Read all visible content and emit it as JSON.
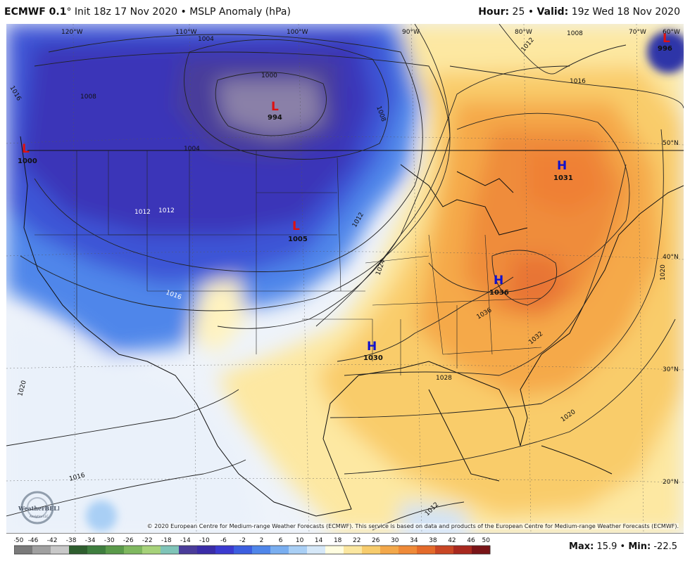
{
  "header": {
    "model": "ECMWF 0.1",
    "degree": "°",
    "init": "Init 18z 17 Nov 2020",
    "bullet": "•",
    "product": "MSLP Anomaly (hPa)",
    "hour_label": "Hour:",
    "hour_value": "25",
    "valid_label": "Valid:",
    "valid_value": "19z Wed 18 Nov 2020"
  },
  "map": {
    "lon_labels": [
      "120°W",
      "110°W",
      "100°W",
      "90°W",
      "80°W",
      "70°W",
      "60°W"
    ],
    "lat_labels": [
      "50°N",
      "40°N",
      "30°N",
      "20°N"
    ],
    "isobars": [
      "1004",
      "1000",
      "1008",
      "1012",
      "1016",
      "1024",
      "1028",
      "1032",
      "1036",
      "1020",
      "1016",
      "1012",
      "1008",
      "1004",
      "1000",
      "1016",
      "1012",
      "1020",
      "1020",
      "1012"
    ],
    "centers": [
      {
        "letter": "L",
        "value": "994"
      },
      {
        "letter": "L",
        "value": "1000"
      },
      {
        "letter": "L",
        "value": "1005"
      },
      {
        "letter": "L",
        "value": "996"
      },
      {
        "letter": "H",
        "value": "1031"
      },
      {
        "letter": "H",
        "value": "1036"
      },
      {
        "letter": "H",
        "value": "1030"
      }
    ],
    "low_color": "#dd1111",
    "high_color": "#1111cc"
  },
  "copyright": "© 2020 European Centre for Medium-range Weather Forecasts (ECMWF). This service is based on data and products of the European Centre for Medium-range Weather Forecasts (ECMWF).",
  "logo": {
    "text": "WeatherBELL",
    "sub": "Analytics LLC"
  },
  "colorbar": {
    "labels": [
      "-50",
      "-46",
      "-42",
      "-38",
      "-34",
      "-30",
      "-26",
      "-22",
      "-18",
      "-14",
      "-10",
      "-6",
      "-2",
      "2",
      "6",
      "10",
      "14",
      "18",
      "22",
      "26",
      "30",
      "34",
      "38",
      "42",
      "46",
      "50"
    ],
    "colors": [
      "#7a7a7a",
      "#a0a0a0",
      "#c8c8c8",
      "#2e5e2e",
      "#3e7e3e",
      "#5a9a4a",
      "#7fb85f",
      "#a6d27a",
      "#7fc4b8",
      "#4a3c9a",
      "#3a2ca8",
      "#3b3ad0",
      "#3c5ee0",
      "#4f86ea",
      "#79aef0",
      "#a9cff5",
      "#d6e8f8",
      "#fffde0",
      "#fbe7a0",
      "#f7cc6c",
      "#f3a84a",
      "#ef8a38",
      "#e46a2a",
      "#c94624",
      "#a8281e",
      "#7a1418"
    ]
  },
  "stats": {
    "max_label": "Max:",
    "max_value": "15.9",
    "sep": "•",
    "min_label": "Min:",
    "min_value": "-22.5"
  }
}
